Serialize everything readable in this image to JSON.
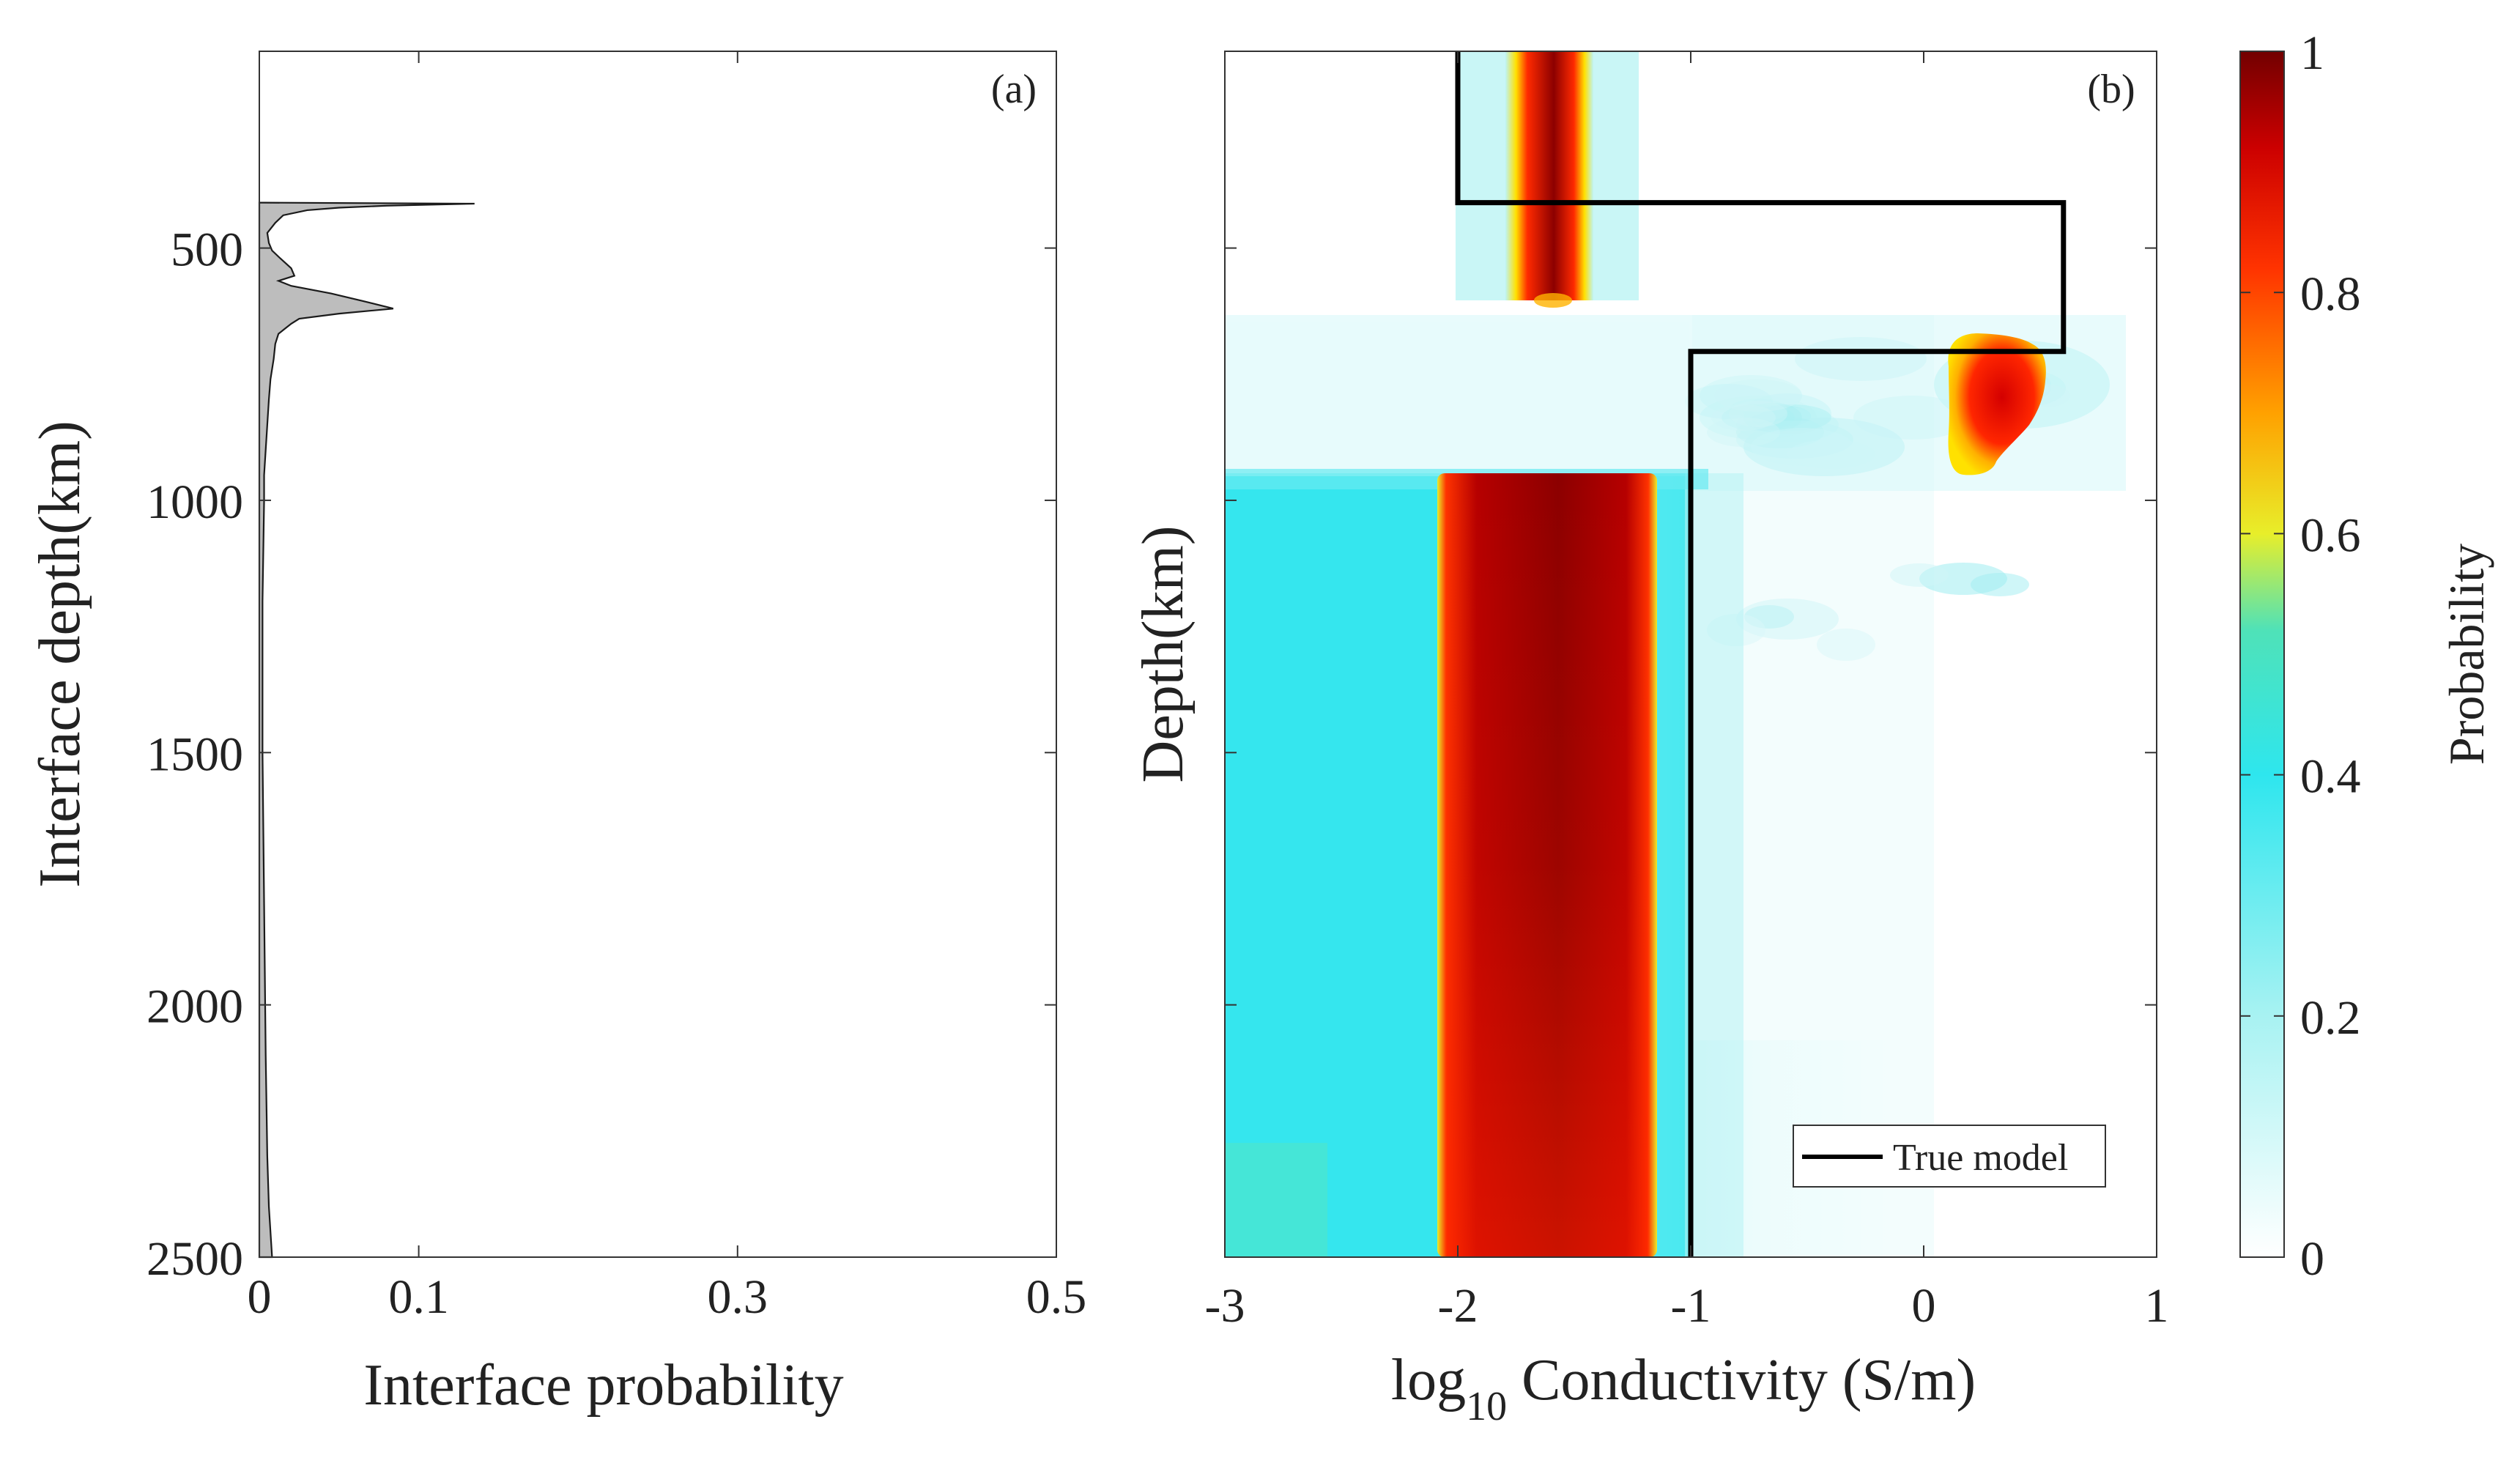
{
  "chart_data": [
    {
      "id": "a",
      "type": "area",
      "panel_label": "(a)",
      "xlabel": "Interface probability",
      "ylabel": "Interface depth(km)",
      "xlim": [
        0,
        0.5
      ],
      "ylim": [
        110,
        2500
      ],
      "xticks": [
        0,
        0.1,
        0.3,
        0.5
      ],
      "xtick_labels": [
        "0",
        "0.1",
        "0.3",
        "0.5"
      ],
      "yticks": [
        500,
        1000,
        1500,
        2000,
        2500
      ],
      "ytick_labels": [
        "500",
        "1000",
        "1500",
        "2000",
        "2500"
      ],
      "fill_color": "#bdbdbd",
      "depth": [
        410,
        412,
        416,
        420,
        425,
        435,
        450,
        470,
        490,
        505,
        520,
        540,
        555,
        565,
        575,
        590,
        605,
        620,
        630,
        640,
        650,
        660,
        670,
        690,
        720,
        760,
        800,
        850,
        900,
        950,
        1000,
        1200,
        1500,
        1800,
        2100,
        2300,
        2400,
        2500
      ],
      "probability": [
        0.003,
        0.135,
        0.08,
        0.05,
        0.03,
        0.015,
        0.01,
        0.005,
        0.006,
        0.008,
        0.013,
        0.02,
        0.022,
        0.012,
        0.02,
        0.045,
        0.065,
        0.084,
        0.05,
        0.025,
        0.02,
        0.016,
        0.012,
        0.01,
        0.009,
        0.007,
        0.006,
        0.005,
        0.004,
        0.003,
        0.003,
        0.002,
        0.002,
        0.003,
        0.004,
        0.005,
        0.006,
        0.008
      ]
    },
    {
      "id": "b",
      "type": "heatmap",
      "panel_label": "(b)",
      "xlabel_prefix": "log",
      "xlabel_sub": "10",
      "xlabel_suffix": " Conductivity (S/m)",
      "ylabel": "Depth(km)",
      "xlim": [
        -3,
        1
      ],
      "ylim": [
        110,
        2500
      ],
      "xticks": [
        -3,
        -2,
        -1,
        0,
        1
      ],
      "xtick_labels": [
        "-3",
        "-2",
        "-1",
        "0",
        "1"
      ],
      "yticks": [
        500,
        1000,
        1500,
        2000
      ],
      "legend": {
        "label": "True model",
        "position": "bottom-right"
      },
      "true_model": {
        "x": [
          -2,
          -2,
          0.6,
          0.6,
          -1,
          -1
        ],
        "depth": [
          110,
          410,
          410,
          705,
          705,
          2500
        ]
      },
      "probability_regions": [
        {
          "name": "upper layer core",
          "x_range": [
            -1.8,
            -1.4
          ],
          "depth_range": [
            110,
            410
          ],
          "probability": 0.95
        },
        {
          "name": "transition zone",
          "x_range": [
            0.1,
            0.45
          ],
          "depth_range": [
            420,
            650
          ],
          "probability": 0.9
        },
        {
          "name": "deep mantle core",
          "x_range": [
            -2.05,
            -1.15
          ],
          "depth_range": [
            650,
            2500
          ],
          "probability": 0.92
        },
        {
          "name": "deep mantle halo",
          "x_range": [
            -3,
            -1
          ],
          "depth_range": [
            650,
            2500
          ],
          "probability": 0.4
        }
      ]
    },
    {
      "id": "colorbar",
      "type": "colorbar",
      "label": "Probability",
      "range": [
        0,
        1
      ],
      "ticks": [
        0,
        0.2,
        0.4,
        0.6,
        0.8,
        1
      ],
      "tick_labels": [
        "0",
        "0.2",
        "0.4",
        "0.6",
        "0.8",
        "1"
      ],
      "stops": [
        {
          "value": 0,
          "color": "#ffffff"
        },
        {
          "value": 0.2,
          "color": "#a8f2f2"
        },
        {
          "value": 0.4,
          "color": "#2ee6ee"
        },
        {
          "value": 0.52,
          "color": "#4fe2b8"
        },
        {
          "value": 0.6,
          "color": "#e8ee2a"
        },
        {
          "value": 0.7,
          "color": "#ffa100"
        },
        {
          "value": 0.82,
          "color": "#ff3300"
        },
        {
          "value": 0.92,
          "color": "#cc0000"
        },
        {
          "value": 1,
          "color": "#720000"
        }
      ]
    }
  ]
}
